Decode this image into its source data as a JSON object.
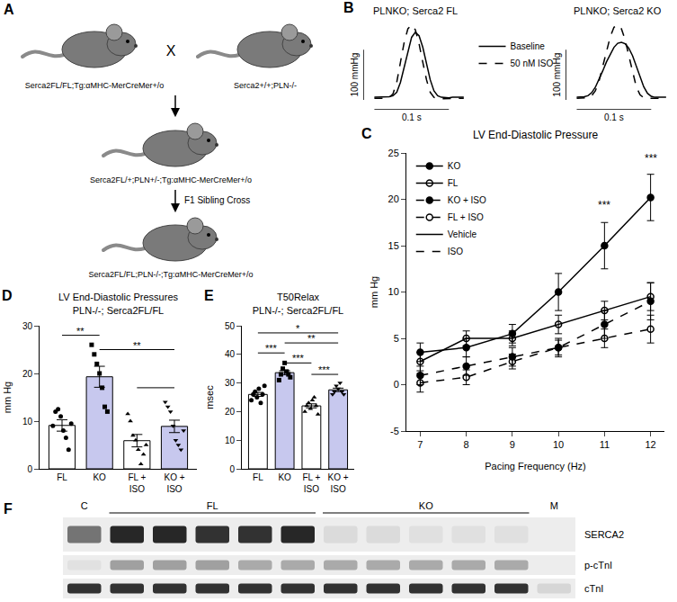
{
  "diagram": {
    "panel_label": "A",
    "parents": [
      "Serca2FL/FL;Tg:αMHC-MerCreMer+/o",
      "Serca2+/+;PLN-/-"
    ],
    "cross_symbol": "X",
    "f1": "Serca2FL/+;PLN+/-;Tg:αMHC-MerCreMer+/o",
    "step_label": "F1 Sibling Cross",
    "offspring": "Serca2FL/FL;PLN-/-;Tg:αMHC-MerCreMer+/o"
  },
  "chart_data": [
    {
      "panel_label": "B",
      "type": "line",
      "title": "PLNKO; Serca2 FL",
      "x": [
        0,
        0.005,
        0.01,
        0.015,
        0.02,
        0.025,
        0.03,
        0.035,
        0.04,
        0.045,
        0.05,
        0.055,
        0.06,
        0.065,
        0.07,
        0.075,
        0.08,
        0.085,
        0.09,
        0.095,
        0.1,
        0.105,
        0.11,
        0.115,
        0.12
      ],
      "series": [
        {
          "name": "Baseline",
          "color": "#000000",
          "line_style": "solid",
          "values": [
            5,
            5,
            5,
            5,
            6,
            8,
            15,
            35,
            65,
            100,
            125,
            135,
            128,
            105,
            72,
            40,
            18,
            8,
            5,
            4,
            4,
            5,
            5,
            5,
            5
          ]
        },
        {
          "name": "50 nM ISO",
          "color": "#000000",
          "line_style": "dash",
          "values": [
            3,
            3,
            3,
            3,
            5,
            12,
            35,
            75,
            115,
            142,
            150,
            140,
            112,
            75,
            40,
            15,
            5,
            2,
            2,
            3,
            3,
            3,
            3,
            3,
            3
          ]
        }
      ],
      "xlim": [
        -0.015,
        0.125
      ],
      "ylim": [
        -20,
        160
      ],
      "tick_labels": false,
      "grid": false,
      "legend": "top",
      "scale_bars": {
        "x": {
          "value": 0.1,
          "label": "0.1 s"
        },
        "y": {
          "value": 100,
          "label": "100 mmHg"
        }
      }
    },
    {
      "type": "line",
      "title": "PLNKO; Serca2 KO",
      "x": [
        0,
        0.005,
        0.01,
        0.015,
        0.02,
        0.025,
        0.03,
        0.035,
        0.04,
        0.045,
        0.05,
        0.055,
        0.06,
        0.065,
        0.07,
        0.075,
        0.08,
        0.085,
        0.09,
        0.095,
        0.1,
        0.105,
        0.11,
        0.115,
        0.12
      ],
      "series": [
        {
          "name": "Baseline",
          "color": "#000000",
          "line_style": "solid",
          "values": [
            5,
            5,
            6,
            8,
            14,
            25,
            40,
            58,
            76,
            92,
            105,
            113,
            115,
            112,
            103,
            88,
            68,
            46,
            26,
            13,
            7,
            5,
            5,
            5,
            5
          ]
        },
        {
          "name": "50 nM ISO",
          "color": "#000000",
          "line_style": "dash",
          "values": [
            3,
            3,
            3,
            4,
            8,
            18,
            38,
            66,
            98,
            126,
            145,
            150,
            142,
            120,
            88,
            54,
            26,
            10,
            4,
            3,
            3,
            3,
            3,
            3,
            3
          ]
        }
      ],
      "xlim": [
        -0.015,
        0.125
      ],
      "ylim": [
        -20,
        160
      ],
      "tick_labels": false,
      "grid": false,
      "legend": "top",
      "scale_bars": {
        "x": {
          "value": 0.1,
          "label": "0.1 s"
        },
        "y": {
          "value": 100,
          "label": "100 mmHg"
        }
      }
    },
    {
      "panel_label": "C",
      "type": "line",
      "title": "LV End-Diastolic Pressure",
      "x_label": "Pacing Frequency (Hz)",
      "y_label": "mm Hg",
      "x": [
        7,
        8,
        9,
        10,
        11,
        12
      ],
      "series": [
        {
          "name": "KO",
          "color": "#000000",
          "marker": "circle",
          "line_style": "solid",
          "values": [
            3.5,
            4,
            5.5,
            10,
            15,
            20.2
          ],
          "errors": [
            1,
            1,
            1,
            2,
            2.5,
            2.5
          ]
        },
        {
          "name": "FL",
          "color": "#000000",
          "marker": "circle-open",
          "line_style": "solid",
          "values": [
            2.5,
            5,
            5,
            6.5,
            8,
            9.5
          ],
          "errors": [
            1,
            0.8,
            0.8,
            1,
            1,
            1.5
          ]
        },
        {
          "name": "KO + ISO",
          "color": "#000000",
          "marker": "circle",
          "line_style": "dash",
          "values": [
            1,
            2,
            3,
            4,
            6.5,
            9
          ],
          "errors": [
            1,
            1,
            1,
            1,
            1.5,
            2
          ]
        },
        {
          "name": "FL + ISO",
          "color": "#000000",
          "marker": "circle-open",
          "line_style": "dash",
          "values": [
            0.2,
            0.8,
            2.5,
            4,
            5,
            6
          ],
          "errors": [
            1,
            0.8,
            0.8,
            0.8,
            1,
            1.5
          ]
        }
      ],
      "line_legend": [
        {
          "name": "Vehicle",
          "line_style": "solid"
        },
        {
          "name": "ISO",
          "line_style": "dash"
        }
      ],
      "annotations": [
        {
          "text": "***",
          "x": 11,
          "y": 18.5
        },
        {
          "text": "***",
          "x": 12,
          "y": 23.5
        }
      ],
      "xlim": [
        6.7,
        12.3
      ],
      "xticks": [
        7,
        8,
        9,
        10,
        11,
        12
      ],
      "ylim": [
        -5,
        25
      ],
      "yticks": [
        -5,
        0,
        5,
        10,
        15,
        20,
        25
      ],
      "grid": false,
      "legend": "top left"
    },
    {
      "panel_label": "D",
      "type": "bar",
      "title": "LV End-Diastolic Pressures",
      "subtitle": "PLN-/-; Serca2FL/FL",
      "y_label": "mm Hg",
      "categories": [
        "FL",
        "KO",
        "FL + ISO",
        "KO + ISO"
      ],
      "values": [
        9.1,
        19.3,
        5.9,
        8.9
      ],
      "errors": [
        1.2,
        2.2,
        1.3,
        1.3
      ],
      "colors": [
        "#ffffff",
        "#c7c8ee",
        "#ffffff",
        "#c7c8ee"
      ],
      "points": [
        {
          "marker": "circle",
          "values": [
            9,
            12,
            12.5,
            11,
            8,
            6.5,
            4,
            9.5
          ]
        },
        {
          "marker": "square",
          "values": [
            26,
            24,
            22,
            20,
            17,
            13,
            12
          ]
        },
        {
          "marker": "triangle-up",
          "values": [
            11.5,
            10,
            7,
            6,
            4,
            1,
            3,
            5
          ]
        },
        {
          "marker": "triangle-down",
          "values": [
            14,
            13,
            12,
            9,
            6,
            5,
            4,
            8
          ]
        }
      ],
      "brackets": [
        {
          "from": 0,
          "to": 1,
          "y": 28,
          "text": "**"
        },
        {
          "from": 1,
          "to": 3,
          "y": 25,
          "text": "**"
        },
        {
          "from": 2,
          "to": 3,
          "y": 17
        }
      ],
      "ylim": [
        0,
        30
      ],
      "yticks": [
        0,
        10,
        20,
        30
      ],
      "grid": false
    },
    {
      "panel_label": "E",
      "type": "bar",
      "title": "T50Relax",
      "subtitle": "PLN-/-; Serca2FL/FL",
      "y_label": "msec",
      "categories": [
        "FL",
        "KO",
        "FL + ISO",
        "KO + ISO"
      ],
      "values": [
        26,
        33.6,
        22,
        27.6
      ],
      "errors": [
        0.7,
        0.7,
        0.7,
        0.6
      ],
      "colors": [
        "#ffffff",
        "#c7c8ee",
        "#ffffff",
        "#c7c8ee"
      ],
      "points": [
        {
          "marker": "circle",
          "values": [
            24,
            26,
            27,
            25,
            28,
            23,
            26,
            29
          ]
        },
        {
          "marker": "square",
          "values": [
            31,
            33,
            35,
            37,
            34,
            33,
            32
          ]
        },
        {
          "marker": "triangle-up",
          "values": [
            20,
            22,
            23,
            21,
            24,
            25,
            22,
            19
          ]
        },
        {
          "marker": "triangle-down",
          "values": [
            26,
            27,
            29,
            28,
            30,
            27,
            26
          ]
        }
      ],
      "brackets": [
        {
          "from": 0,
          "to": 3,
          "y": 47.5,
          "text": "*"
        },
        {
          "from": 1,
          "to": 3,
          "y": 44,
          "text": "**"
        },
        {
          "from": 0,
          "to": 1,
          "y": 40.5,
          "text": "***"
        },
        {
          "from": 1,
          "to": 2,
          "y": 37,
          "text": "***"
        },
        {
          "from": 2,
          "to": 3,
          "y": 33,
          "text": "***"
        }
      ],
      "ylim": [
        0,
        50
      ],
      "yticks": [
        0,
        10,
        20,
        30,
        40,
        50
      ],
      "grid": false
    }
  ],
  "blot": {
    "panel_label": "F",
    "lane_groups": [
      {
        "label": "C",
        "lanes": 1
      },
      {
        "label": "FL",
        "lanes": 5
      },
      {
        "label": "KO",
        "lanes": 5
      },
      {
        "label": "M",
        "lanes": 1
      }
    ],
    "rows": [
      {
        "label": "SERCA2",
        "band_intensity": [
          0.55,
          0.9,
          0.9,
          0.85,
          0.85,
          0.9,
          0.08,
          0.08,
          0.06,
          0.06,
          0.06,
          0
        ]
      },
      {
        "label": "p-cTnI",
        "band_intensity": [
          0.05,
          0.35,
          0.35,
          0.35,
          0.3,
          0.3,
          0.3,
          0.3,
          0.3,
          0.3,
          0.3,
          0
        ]
      },
      {
        "label": "cTnI",
        "band_intensity": [
          0.85,
          0.85,
          0.85,
          0.85,
          0.85,
          0.85,
          0.85,
          0.85,
          0.85,
          0.85,
          0.85,
          0.1
        ]
      }
    ]
  }
}
